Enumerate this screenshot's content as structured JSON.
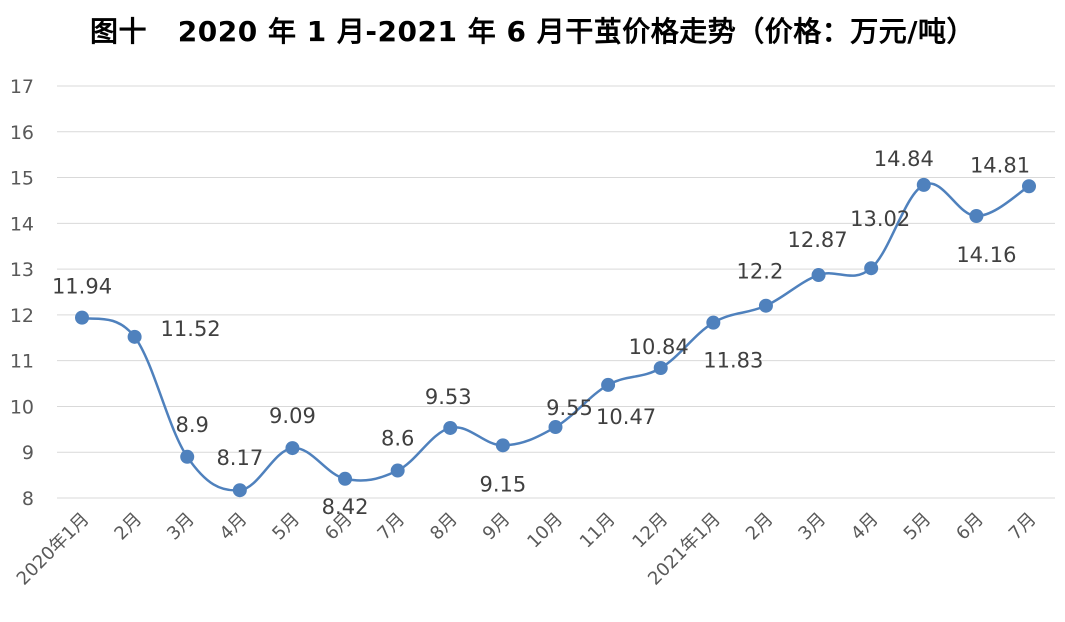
{
  "chart_data": {
    "type": "line",
    "title": "图十   2020 年 1 月-2021 年 6 月干茧价格走势（价格：万元/吨）",
    "xlabel": "",
    "ylabel": "",
    "ylim": [
      8,
      17
    ],
    "yticks": [
      8,
      9,
      10,
      11,
      12,
      13,
      14,
      15,
      16,
      17
    ],
    "grid": true,
    "smooth": true,
    "line_color": "#4f81bd",
    "categories": [
      "2020年1月",
      "2月",
      "3月",
      "4月",
      "5月",
      "6月",
      "7月",
      "8月",
      "9月",
      "10月",
      "11月",
      "12月",
      "2021年1月",
      "2月",
      "3月",
      "4月",
      "5月",
      "6月",
      "7月"
    ],
    "values": [
      11.94,
      11.52,
      8.9,
      8.17,
      9.09,
      8.42,
      8.6,
      9.53,
      9.15,
      9.55,
      10.47,
      10.84,
      11.83,
      12.2,
      12.87,
      13.02,
      14.84,
      14.16,
      14.81
    ],
    "data_labels": [
      "11.94",
      "11.52",
      "8.9",
      "8.17",
      "9.09",
      "8.42",
      "8.6",
      "9.53",
      "9.15",
      "9.55",
      "10.47",
      "10.84",
      "11.83",
      "12.2",
      "12.87",
      "13.02",
      "14.84",
      "14.16",
      "14.81"
    ]
  }
}
